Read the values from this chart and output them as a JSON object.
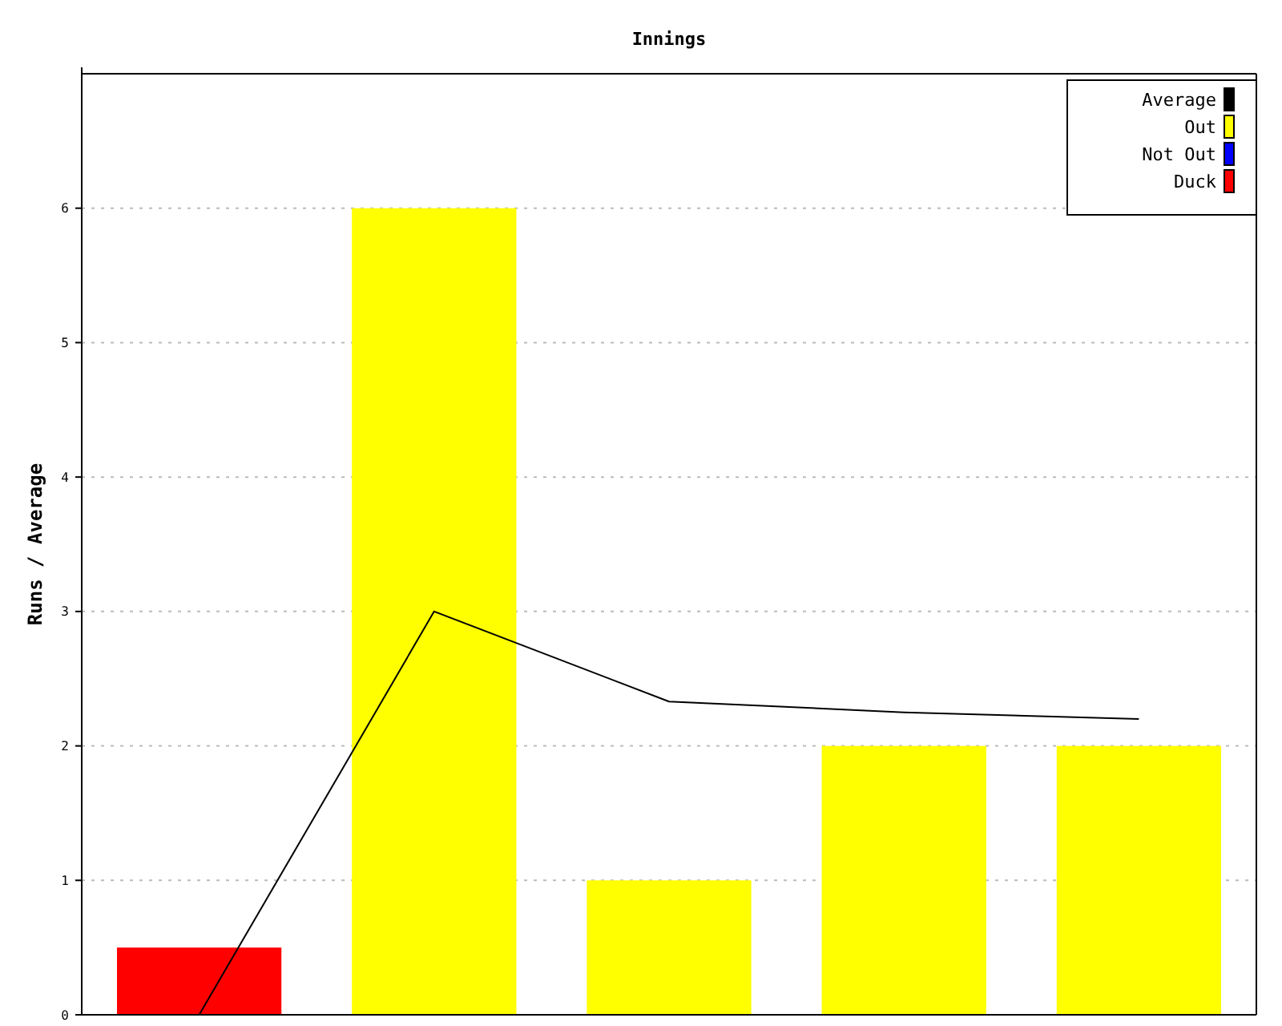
{
  "chart_data": {
    "type": "bar",
    "title": "Innings",
    "ylabel": "Runs / Average",
    "categories": [
      null,
      null,
      null,
      null,
      null
    ],
    "series": [
      {
        "name": "Average",
        "type": "line",
        "color": "#000000",
        "values": [
          0,
          3,
          2.33,
          2.25,
          2.2
        ]
      },
      {
        "name": "Out",
        "color": "#ffff00",
        "values": [
          null,
          6,
          1,
          2,
          2
        ]
      },
      {
        "name": "Not Out",
        "color": "#0000ff",
        "values": [
          null,
          null,
          null,
          null,
          null
        ]
      },
      {
        "name": "Duck",
        "color": "#ff0000",
        "values": [
          0.5,
          null,
          null,
          null,
          null
        ]
      }
    ],
    "ylim": [
      0,
      7
    ],
    "yticks": [
      0,
      1,
      2,
      3,
      4,
      5,
      6
    ],
    "grid": "y",
    "legend": "top right"
  }
}
